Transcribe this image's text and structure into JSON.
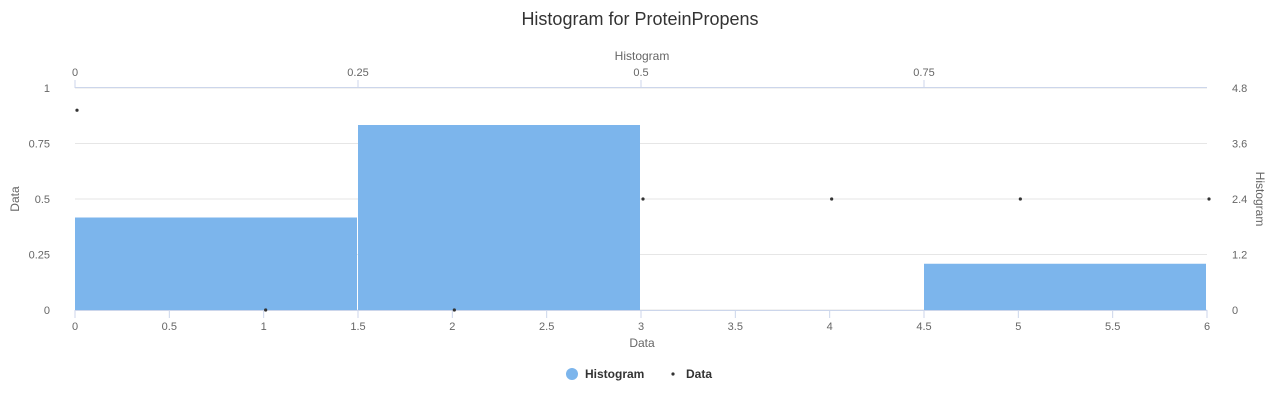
{
  "chart_data": {
    "type": "bar",
    "title": "Histogram for ProteinPropens",
    "xlabel": "Data",
    "ylabel": "Data",
    "x2label": "Histogram",
    "y2label": "Histogram",
    "xlim": [
      0,
      6
    ],
    "ylim": [
      0,
      1
    ],
    "x2lim": [
      0,
      1
    ],
    "y2lim": [
      0,
      4.8
    ],
    "x_ticks": [
      "0",
      "0.5",
      "1",
      "1.5",
      "2",
      "2.5",
      "3",
      "3.5",
      "4",
      "4.5",
      "5",
      "5.5",
      "6"
    ],
    "y_ticks": [
      "0",
      "0.25",
      "0.5",
      "0.75",
      "1"
    ],
    "x2_ticks": [
      "0",
      "0.25",
      "0.5",
      "0.75"
    ],
    "y2_ticks": [
      "0",
      "1.2",
      "2.4",
      "3.6",
      "4.8"
    ],
    "series": [
      {
        "name": "Histogram",
        "kind": "histogram",
        "color": "#7cb5ec",
        "bins": [
          {
            "x0": 0,
            "x1": 1.5,
            "y": 2
          },
          {
            "x0": 1.5,
            "x1": 3,
            "y": 4
          },
          {
            "x0": 3,
            "x1": 4.5,
            "y": 0
          },
          {
            "x0": 4.5,
            "x1": 6,
            "y": 1
          }
        ]
      },
      {
        "name": "Data",
        "kind": "scatter",
        "color": "#333333",
        "points": [
          {
            "x": 0,
            "y": 0.9
          },
          {
            "x": 1,
            "y": 0
          },
          {
            "x": 2,
            "y": 0
          },
          {
            "x": 3,
            "y": 0.5
          },
          {
            "x": 4,
            "y": 0.5
          },
          {
            "x": 5,
            "y": 0.5
          },
          {
            "x": 6,
            "y": 0.5
          }
        ]
      }
    ],
    "legend": "bottom-center",
    "grid": true
  }
}
